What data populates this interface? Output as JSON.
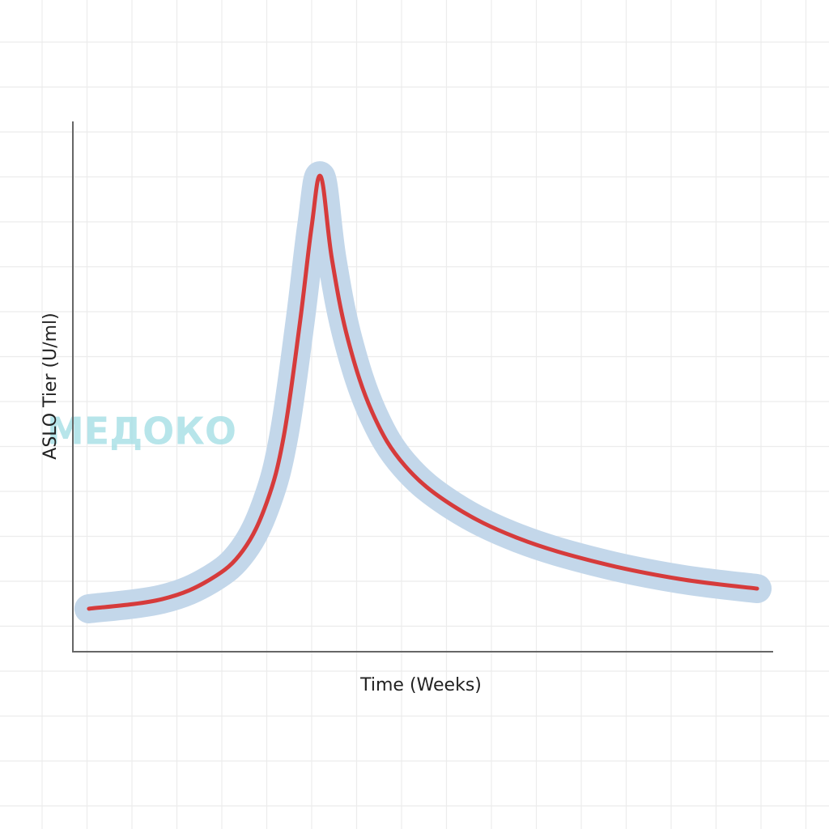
{
  "chart_data": {
    "type": "line",
    "x_label": "Time (Weeks)",
    "y_label": "ASLO Tier (U/ml)",
    "watermark": "МЕДОКО",
    "xlim": [
      0,
      100
    ],
    "ylim": [
      0,
      100
    ],
    "x": [
      2.3,
      12.7,
      19.7,
      24.3,
      27.7,
      30.1,
      32.4,
      34.1,
      35.4,
      37.0,
      39.3,
      42.8,
      47.4,
      54.3,
      63.6,
      75.1,
      86.7,
      97.7
    ],
    "series": [
      {
        "color": "#d63b3b",
        "halo_color": "#c3d7ea",
        "values": [
          8.1,
          9.9,
          13.7,
          19.1,
          28.2,
          40.5,
          61.8,
          80.2,
          89.6,
          74.0,
          58.8,
          45.0,
          35.1,
          27.5,
          21.4,
          16.8,
          13.7,
          11.9
        ]
      }
    ]
  }
}
